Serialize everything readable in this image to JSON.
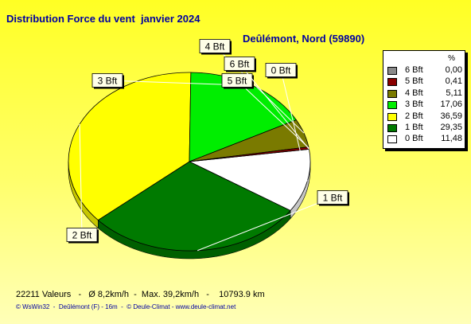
{
  "chart_data": {
    "type": "pie",
    "title": "Distribution Force du vent  janvier 2024",
    "subtitle": "Deûlémont, Nord (59890)",
    "legend_header": "%",
    "legend_position": "right",
    "categories": [
      "0 Bft",
      "1 Bft",
      "2 Bft",
      "3 Bft",
      "4 Bft",
      "5 Bft",
      "6 Bft"
    ],
    "values": [
      11.48,
      29.35,
      36.59,
      17.06,
      5.11,
      0.41,
      0.0
    ],
    "value_labels": [
      "11,48",
      "29,35",
      "36,59",
      "17,06",
      "5,11",
      "0,41",
      "0,00"
    ],
    "colors": [
      "#ffffff",
      "#007a00",
      "#ffff00",
      "#00ee00",
      "#7a7a00",
      "#8b0000",
      "#8a8a8a"
    ],
    "legend_order": [
      6,
      5,
      4,
      3,
      2,
      1,
      0
    ]
  },
  "footer": {
    "stats": "22211 Valeurs   -   Ø 8,2km/h  -  Max. 39,2km/h   -    10793.9 km",
    "credits": "© WsWin32  -  Deûlémont (F) - 16m  -  © Deule-Climat - www.deule-climat.net"
  }
}
